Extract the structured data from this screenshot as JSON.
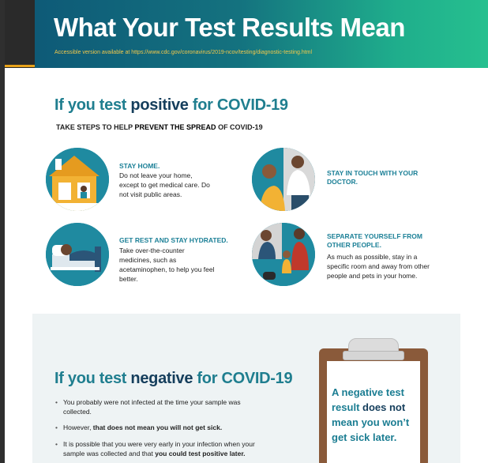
{
  "banner": {
    "title": "What Your Test Results Mean",
    "subtitle": "Accessible version available at https://www.cdc.gov/coronavirus/2019-ncov/testing/diagnostic-testing.html"
  },
  "positive": {
    "title_pre": "If you test ",
    "title_em": "positive",
    "title_post": " for COVID-19",
    "heading_pre": "TAKE STEPS TO HELP ",
    "heading_em": "PREVENT THE SPREAD",
    "heading_post": " OF COVID-19",
    "items": [
      {
        "title": "STAY HOME.",
        "body": "Do not leave your home, except to get medical care. Do not visit public areas.",
        "icon": "house-icon"
      },
      {
        "title": "STAY IN TOUCH WITH YOUR DOCTOR.",
        "body": "",
        "icon": "phone-doctor-icon"
      },
      {
        "title": "GET REST AND STAY HYDRATED.",
        "body": "Take over-the-counter medicines, such as acetaminophen, to help you feel better.",
        "icon": "bed-rest-icon"
      },
      {
        "title": "SEPARATE YOURSELF FROM OTHER PEOPLE.",
        "body": "As much as possible, stay in a specific room and away from other people and pets in your home.",
        "icon": "family-pets-icon"
      }
    ]
  },
  "negative": {
    "title_pre": "If you test ",
    "title_em": "negative",
    "title_post": " for COVID-19",
    "bullets": [
      {
        "pre": "You probably were not infected at the time your sample was collected.",
        "em": "",
        "post": ""
      },
      {
        "pre": "However, ",
        "em": "that does not mean you will not get sick.",
        "post": ""
      },
      {
        "pre": "It is possible that you were very early in your infection when your sample was collected and that ",
        "em": "you could test positive later.",
        "post": ""
      }
    ],
    "callout_pre": "A negative test result ",
    "callout_em": "does not",
    "callout_post": " mean you won’t get sick later.",
    "callout_icon": "clipboard-icon"
  },
  "colors": {
    "teal": "#1f8aa0",
    "navy": "#153e5c",
    "accent_yellow": "#f2c84b",
    "panel_bg": "#eef3f4"
  }
}
